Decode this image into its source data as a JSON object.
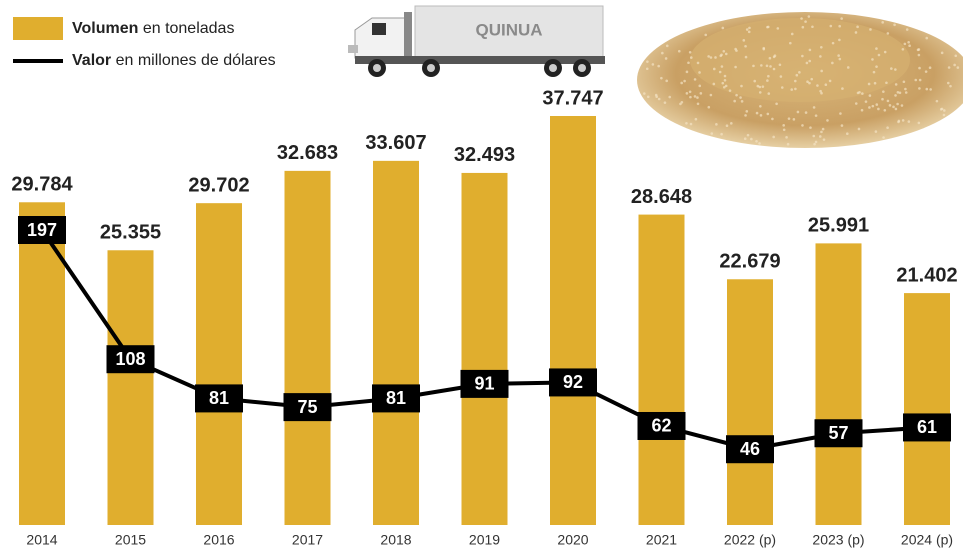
{
  "chart_data": {
    "type": "bar-line",
    "truck_label": "QUINUA",
    "categories": [
      "2014",
      "2015",
      "2016",
      "2017",
      "2018",
      "2019",
      "2020",
      "2021",
      "2022 (p)",
      "2023 (p)",
      "2024 (p)"
    ],
    "series": [
      {
        "name": "Volumen en toneladas",
        "type": "bar",
        "color": "#e0ae2e",
        "values": [
          29784,
          25355,
          29702,
          32683,
          33607,
          32493,
          37747,
          28648,
          22679,
          25991,
          21402
        ],
        "value_labels": [
          "29.784",
          "25.355",
          "29.702",
          "32.683",
          "33.607",
          "32.493",
          "37.747",
          "28.648",
          "22.679",
          "25.991",
          "21.402"
        ]
      },
      {
        "name": "Valor en millones de dólares",
        "type": "line",
        "color": "#000000",
        "values": [
          197,
          108,
          81,
          75,
          81,
          91,
          92,
          62,
          46,
          57,
          61
        ]
      }
    ]
  }
}
